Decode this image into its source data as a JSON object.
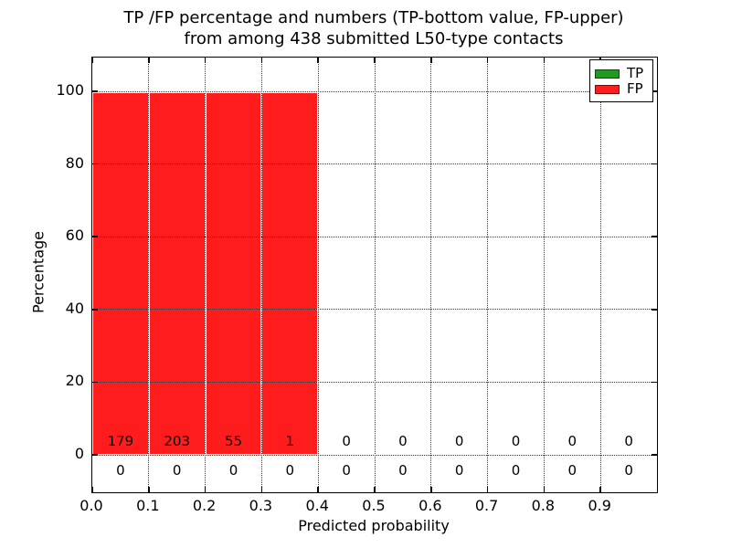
{
  "title": {
    "line1": "TP /FP percentage and numbers (TP-bottom value, FP-upper)",
    "line2": "from among 438 submitted L50-type contacts"
  },
  "axes": {
    "xlabel": "Predicted probability",
    "ylabel": "Percentage",
    "xtick_labels": [
      "0.0",
      "0.1",
      "0.2",
      "0.3",
      "0.4",
      "0.5",
      "0.6",
      "0.7",
      "0.8",
      "0.9"
    ],
    "ytick_labels": [
      "0",
      "20",
      "40",
      "60",
      "80",
      "100"
    ]
  },
  "legend": {
    "entries": [
      {
        "label": "TP",
        "color": "#1f9c1f"
      },
      {
        "label": "FP",
        "color": "#ff1c1c"
      }
    ]
  },
  "colors": {
    "fp_bar": "#ff1c1c",
    "tp_bar": "#1f9c1f",
    "grid": "#3a3a3a",
    "spine": "#000000"
  },
  "chart_data": {
    "type": "bar",
    "title": "TP /FP percentage and numbers (TP-bottom value, FP-upper) from among 438 submitted L50-type contacts",
    "xlabel": "Predicted probability",
    "ylabel": "Percentage",
    "xlim": [
      0.0,
      1.0
    ],
    "ylim": [
      -10,
      110
    ],
    "grid": "dotted",
    "legend_position": "upper-right",
    "bin_edges": [
      0.0,
      0.1,
      0.2,
      0.3,
      0.4,
      0.5,
      0.6,
      0.7,
      0.8,
      0.9,
      1.0
    ],
    "xticks": [
      0.0,
      0.1,
      0.2,
      0.3,
      0.4,
      0.5,
      0.6,
      0.7,
      0.8,
      0.9
    ],
    "yticks": [
      0,
      20,
      40,
      60,
      80,
      100
    ],
    "total_submitted_contacts": 438,
    "series": [
      {
        "name": "TP",
        "color": "#1f9c1f",
        "percent": [
          0,
          0,
          0,
          0,
          0,
          0,
          0,
          0,
          0,
          0
        ],
        "counts": [
          0,
          0,
          0,
          0,
          0,
          0,
          0,
          0,
          0,
          0
        ],
        "annotation_row": "lower"
      },
      {
        "name": "FP",
        "color": "#ff1c1c",
        "percent": [
          100,
          100,
          100,
          100,
          0,
          0,
          0,
          0,
          0,
          0
        ],
        "counts": [
          179,
          203,
          55,
          1,
          0,
          0,
          0,
          0,
          0,
          0
        ],
        "annotation_row": "upper"
      }
    ]
  }
}
